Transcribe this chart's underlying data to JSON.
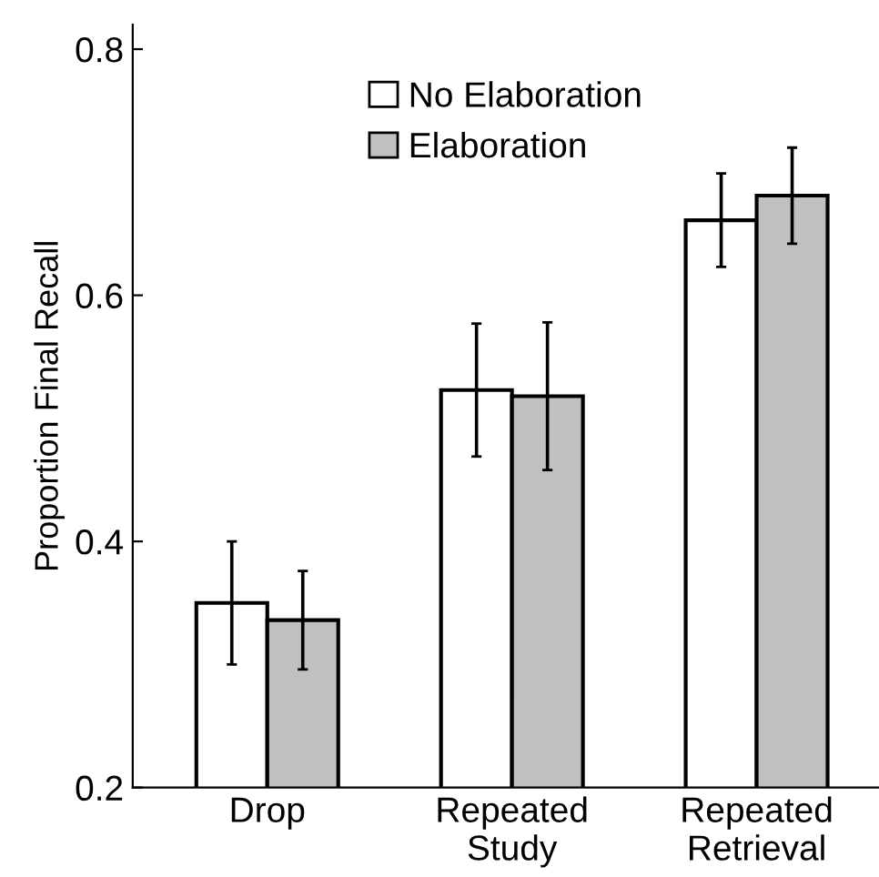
{
  "chart_data": {
    "type": "bar",
    "ylabel": "Proportion Final Recall",
    "categories": [
      "Drop",
      "Repeated\nStudy",
      "Repeated\nRetrieval"
    ],
    "series": [
      {
        "name": "No Elaboration",
        "color": "#ffffff",
        "values": [
          0.35,
          0.523,
          0.661
        ],
        "errors": [
          0.05,
          0.054,
          0.038
        ]
      },
      {
        "name": "Elaboration",
        "color": "#c0c0c0",
        "values": [
          0.336,
          0.518,
          0.681
        ],
        "errors": [
          0.04,
          0.06,
          0.039
        ]
      }
    ],
    "ylim": [
      0.2,
      0.82
    ],
    "yticks": [
      0.2,
      0.4,
      0.6,
      0.8
    ],
    "grid": false,
    "legend": "top"
  }
}
